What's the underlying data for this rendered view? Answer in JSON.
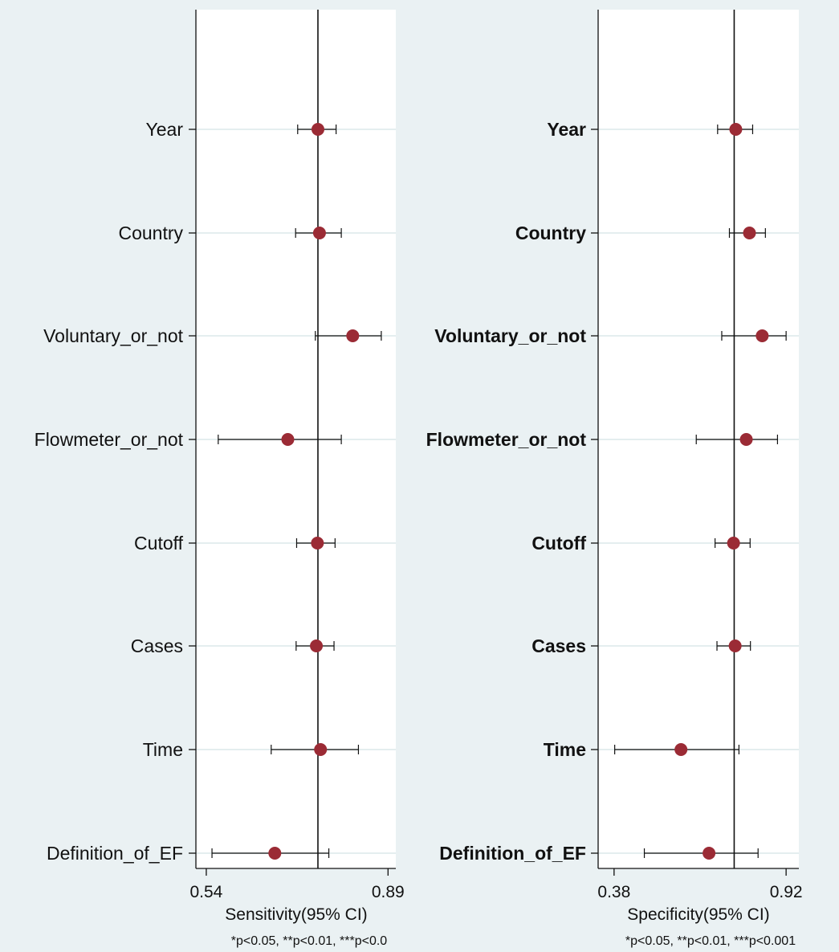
{
  "chart_data": [
    {
      "type": "scatter",
      "subtype": "forest-plot",
      "xlabel": "Sensitivity(95% CI)",
      "footnote": "*p<0.05, **p<0.01, ***p<0.0",
      "xlim": [
        0.52,
        0.905
      ],
      "xticks": [
        0.54,
        0.89
      ],
      "xtick_labels": [
        "0.54",
        "0.89"
      ],
      "reference_line": 0.755,
      "grid": true,
      "categories": [
        "Year",
        "Country",
        "Voluntary_or_not",
        "Flowmeter_or_not",
        "Cutoff",
        "Cases",
        "Time",
        "Definition_of_EF"
      ],
      "estimate": [
        0.755,
        0.758,
        0.822,
        0.697,
        0.754,
        0.752,
        0.76,
        0.672
      ],
      "ci_lower": [
        0.716,
        0.712,
        0.75,
        0.563,
        0.714,
        0.713,
        0.665,
        0.551
      ],
      "ci_upper": [
        0.79,
        0.8,
        0.877,
        0.8,
        0.788,
        0.786,
        0.833,
        0.776
      ],
      "colors": {
        "point": "#9b2b35",
        "line": "#111111",
        "plot_bg": "#ffffff",
        "grid": "#e4eeef"
      }
    },
    {
      "type": "scatter",
      "subtype": "forest-plot",
      "xlabel": "Specificity(95% CI)",
      "footnote": "*p<0.05, **p<0.01, ***p<0.001",
      "xlim": [
        0.33,
        0.96
      ],
      "xticks": [
        0.38,
        0.92
      ],
      "xtick_labels": [
        "0.38",
        "0.92"
      ],
      "reference_line": 0.757,
      "grid": true,
      "categories": [
        "Year",
        "Country",
        "Voluntary_or_not",
        "Flowmeter_or_not",
        "Cutoff",
        "Cases",
        "Time",
        "Definition_of_EF"
      ],
      "estimate": [
        0.762,
        0.805,
        0.845,
        0.795,
        0.755,
        0.76,
        0.59,
        0.678
      ],
      "ci_lower": [
        0.705,
        0.742,
        0.718,
        0.638,
        0.697,
        0.703,
        0.382,
        0.475
      ],
      "ci_upper": [
        0.815,
        0.855,
        0.92,
        0.893,
        0.807,
        0.808,
        0.772,
        0.832
      ],
      "colors": {
        "point": "#9b2b35",
        "line": "#111111",
        "plot_bg": "#ffffff",
        "grid": "#e4eeef"
      }
    }
  ]
}
